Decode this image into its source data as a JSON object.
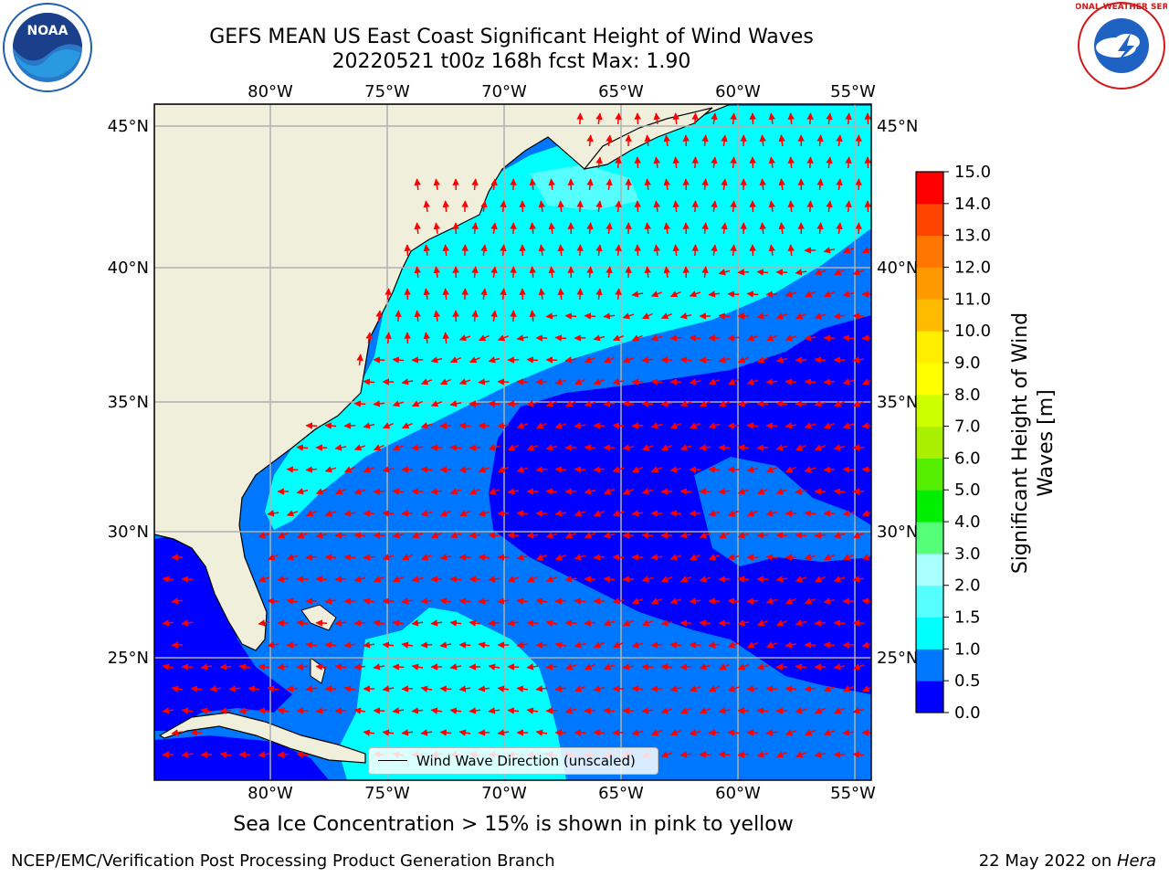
{
  "header": {
    "title_line1": "GEFS MEAN US East Coast Significant Height of Wind Waves",
    "title_line2": "20220521 t00z 168h fcst   Max: 1.90"
  },
  "logos": {
    "left": {
      "name": "noaa-logo",
      "text": "NOAA",
      "color": "#1f5fae"
    },
    "right": {
      "name": "nws-logo",
      "ring_text": "NATIONAL WEATHER SERVICE",
      "color": "#d11a1a"
    }
  },
  "map": {
    "lon_labels": [
      "80°W",
      "75°W",
      "70°W",
      "65°W",
      "60°W",
      "55°W"
    ],
    "lat_labels": [
      "45°N",
      "40°N",
      "35°N",
      "30°N",
      "25°N"
    ],
    "lon_range": [
      -85,
      -54.3
    ],
    "lat_range": [
      20,
      46
    ],
    "arrow_color": "#ff0000",
    "land_color": "#efefdc",
    "legend_label": "Wind Wave Direction (unscaled)"
  },
  "colorbar": {
    "title": "Significant Height of Wind Waves [m]",
    "title_line1": "Significant Height of Wind",
    "title_line2": "Waves [m]",
    "tick_labels": [
      "0.0",
      "0.5",
      "1.0",
      "1.5",
      "2.0",
      "3.0",
      "4.0",
      "5.0",
      "6.0",
      "7.0",
      "8.0",
      "9.0",
      "10.0",
      "11.0",
      "12.0",
      "13.0",
      "14.0",
      "15.0"
    ],
    "colors": [
      "#0000ff",
      "#0077ff",
      "#00ffff",
      "#55ffff",
      "#aaffff",
      "#55ff77",
      "#00ee00",
      "#55ee00",
      "#aaee00",
      "#ccff00",
      "#ffff00",
      "#ffee00",
      "#ffbb00",
      "#ff9900",
      "#ff7700",
      "#ff4400",
      "#ff0000"
    ]
  },
  "caption": "Sea Ice Concentration > 15% is shown in pink to yellow",
  "footer": {
    "left": "NCEP/EMC/Verification Post Processing Product Generation Branch",
    "right_date": "22 May 2022 on ",
    "right_host": "Hera"
  }
}
